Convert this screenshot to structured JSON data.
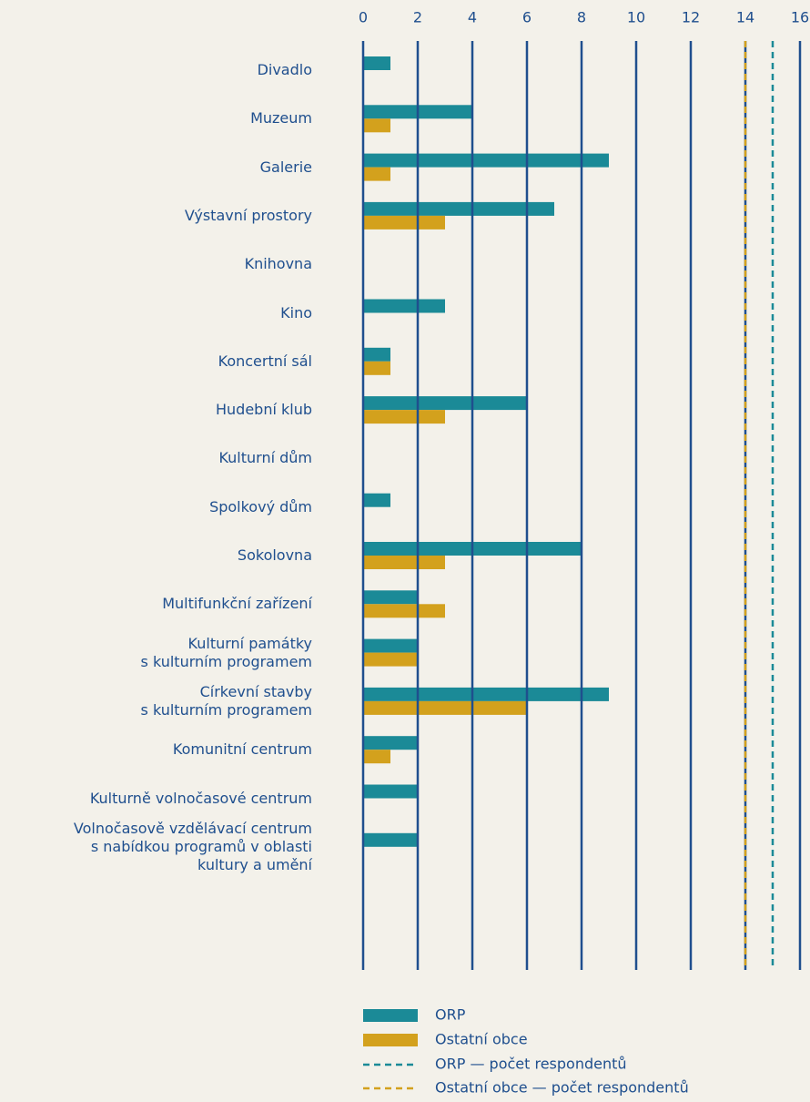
{
  "chart_data": {
    "type": "barh",
    "categories": [
      "Divadlo",
      "Muzeum",
      "Galerie",
      "Výstavní prostory",
      "Knihovna",
      "Kino",
      "Koncertní sál",
      "Hudební klub",
      "Kulturní dům",
      "Spolkový dům",
      "Sokolovna",
      "Multifunkční zařízení",
      "Kulturní památky\ns kulturním programem",
      "Církevní stavby\ns kulturním programem",
      "Komunitní centrum",
      "Kulturně volnočasové centrum",
      "Volnočasově vzdělávací centrum\ns nabídkou programů v oblasti\nkultury a umění"
    ],
    "series": [
      {
        "name": "ORP",
        "color": "#1b8a97",
        "values": [
          1,
          4,
          9,
          7,
          0,
          3,
          1,
          6,
          0,
          1,
          8,
          2,
          2,
          9,
          2,
          2,
          2
        ]
      },
      {
        "name": "Ostatní obce",
        "color": "#d3a11d",
        "values": [
          0,
          1,
          1,
          3,
          0,
          0,
          1,
          3,
          0,
          0,
          3,
          3,
          2,
          6,
          1,
          0,
          0
        ]
      }
    ],
    "reference_lines": [
      {
        "name": "ORP — počet respondentů",
        "value": 15,
        "color": "#1b8a97"
      },
      {
        "name": "Ostatní obce — počet respondentů",
        "value": 14,
        "color": "#d3a11d"
      }
    ],
    "xlim": [
      0,
      16
    ],
    "xticks": [
      0,
      2,
      4,
      6,
      8,
      10,
      12,
      14,
      16
    ],
    "grid": true
  }
}
